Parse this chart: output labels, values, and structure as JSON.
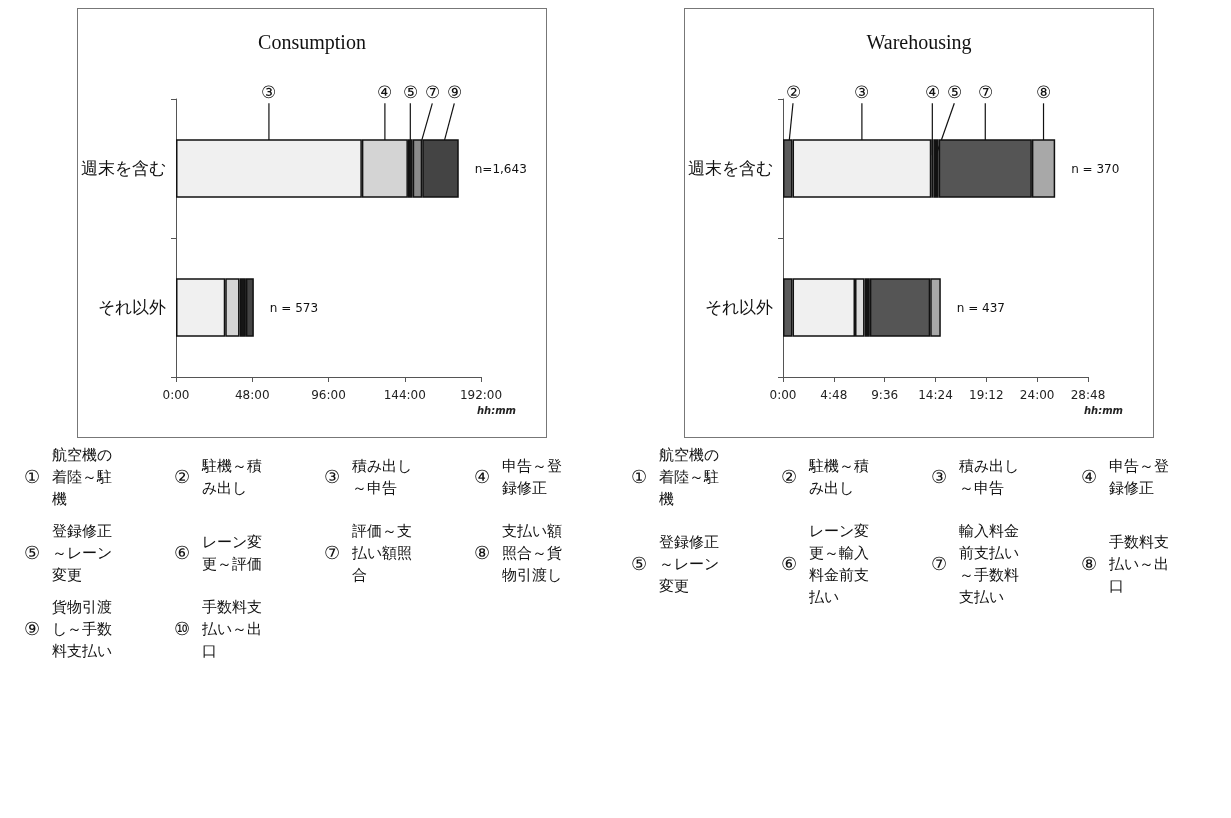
{
  "chart_data": [
    {
      "type": "bar",
      "title": "Consumption",
      "xlabel": "hh:mm",
      "orientation": "horizontal",
      "stacked": true,
      "legend": false,
      "grid": false,
      "categories": [
        "週末を含む",
        "それ以外"
      ],
      "series": [
        {
          "name": "③",
          "color": "#f0f0f0",
          "values": [
            117,
            31
          ]
        },
        {
          "name": "④",
          "color": "#d4d4d4",
          "values": [
            29,
            9
          ]
        },
        {
          "name": "⑤",
          "color": "#161616",
          "values": [
            3,
            4
          ]
        },
        {
          "name": "⑦",
          "color": "#8a8a8a",
          "values": [
            6,
            null
          ]
        },
        {
          "name": "⑨",
          "color": "#444444",
          "values": [
            23,
            5
          ]
        }
      ],
      "xlim": [
        0,
        192
      ],
      "xticks": [
        {
          "value": 0,
          "label": "0:00"
        },
        {
          "value": 48,
          "label": "48:00"
        },
        {
          "value": 96,
          "label": "96:00"
        },
        {
          "value": 144,
          "label": "144:00"
        },
        {
          "value": 192,
          "label": "192:00"
        }
      ],
      "annotations": [
        "n=1,643",
        "n = 573",
        "① 航空機の着陸～駐機",
        "② 駐機～積み出し",
        "③ 積み出し～申告",
        "④ 申告～登録修正",
        "⑤ 登録修正～レーン変更",
        "⑥ レーン変更～評価",
        "⑦ 評価～支払い額照合",
        "⑧ 支払い額照合～貨物引渡し",
        "⑨ 貨物引渡し～手数料支払い",
        "⑩ 手数料支払い～出口"
      ]
    },
    {
      "type": "bar",
      "title": "Warehousing",
      "xlabel": "hh:mm",
      "orientation": "horizontal",
      "stacked": true,
      "legend": false,
      "grid": false,
      "categories": [
        "週末を含む",
        "それ以外"
      ],
      "series": [
        {
          "name": "②",
          "color": "#5a5a5a",
          "values": [
            0.9,
            0.9
          ]
        },
        {
          "name": "③",
          "color": "#f0f0f0",
          "values": [
            13.1,
            5.9
          ]
        },
        {
          "name": "④",
          "color": "#dcdcdc",
          "values": [
            0.2,
            0.9
          ]
        },
        {
          "name": "⑤",
          "color": "#111111",
          "values": [
            0.5,
            0.5
          ]
        },
        {
          "name": "⑦",
          "color": "#555555",
          "values": [
            8.8,
            5.7
          ]
        },
        {
          "name": "⑧",
          "color": "#a8a8a8",
          "values": [
            2.2,
            1.0
          ]
        }
      ],
      "xlim": [
        0,
        28.8
      ],
      "xticks": [
        {
          "value": 0,
          "label": "0:00"
        },
        {
          "value": 4.8,
          "label": "4:48"
        },
        {
          "value": 9.6,
          "label": "9:36"
        },
        {
          "value": 14.4,
          "label": "14:24"
        },
        {
          "value": 19.2,
          "label": "19:12"
        },
        {
          "value": 24,
          "label": "24:00"
        },
        {
          "value": 28.8,
          "label": "28:48"
        }
      ],
      "annotations": [
        "n = 370",
        "n = 437",
        "① 航空機の着陸～駐機",
        "② 駐機～積み出し",
        "③ 積み出し～申告",
        "④ 申告～登録修正",
        "⑤ 登録修正～レーン変更",
        "⑥ レーン変更～輸入料金前支払い",
        "⑦ 輸入料金前支払い～手数料支払い",
        "⑧ 手数料支払い～出口"
      ]
    }
  ]
}
